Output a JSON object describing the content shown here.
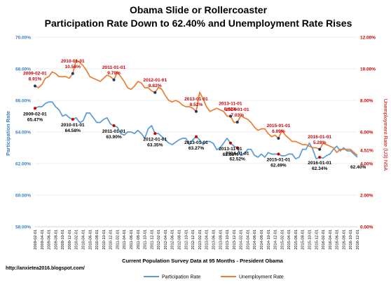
{
  "chart_data": {
    "type": "line",
    "title_line1": "Obama Slide or Rollercoaster",
    "title_line2": "Participation Rate Down to 62.40% and Unemployment Rate Rises",
    "xlabel": "Current Population Survey Data at 95 Months - President Obama",
    "ylabel_left": "Participation Rate",
    "ylabel_right": "Unemployment Rate (U3) NSA",
    "source": "http://anxietea2016.blogspot.com/",
    "x_start": "2009-02-01",
    "x_end": "2016-12-01",
    "left_axis": {
      "min": 58,
      "max": 70,
      "ticks": [
        "58.00%",
        "60.00%",
        "62.00%",
        "64.00%",
        "66.00%",
        "68.00%",
        "70.00%"
      ]
    },
    "right_axis": {
      "min": 0,
      "max": 12,
      "ticks": [
        "0.00%",
        "2.00%",
        "4.00%",
        "6.00%",
        "8.00%",
        "10.00%",
        "12.00%"
      ]
    },
    "legend_position": "bottom",
    "series": [
      {
        "name": "Participation Rate",
        "color": "#5b9bd5",
        "axis": "left",
        "values": [
          65.5,
          65.6,
          65.6,
          65.8,
          65.9,
          65.9,
          65.6,
          65.4,
          65.0,
          65.1,
          64.9,
          64.8,
          64.9,
          64.6,
          64.7,
          65.2,
          65.2,
          64.9,
          64.6,
          64.6,
          64.8,
          64.9,
          64.5,
          64.4,
          64.3,
          63.9,
          63.8,
          64.0,
          64.0,
          63.9,
          64.1,
          63.9,
          63.6,
          64.2,
          64.4,
          63.9,
          63.9,
          63.7,
          63.5,
          63.3,
          63.2,
          63.35,
          63.5,
          63.6,
          63.6,
          63.2,
          63.5,
          63.7,
          63.5,
          63.2,
          63.4,
          63.4,
          63.27,
          62.88,
          63.0,
          63.3,
          63.6,
          63.3,
          63.1,
          63.0,
          62.5,
          62.6,
          62.9,
          62.9,
          62.52,
          62.4,
          62.6,
          62.4,
          62.7,
          62.6,
          62.6,
          62.6,
          62.49,
          62.5,
          62.6,
          62.6,
          62.3,
          62.4,
          62.9,
          62.9,
          63.3,
          62.9,
          62.3,
          62.4,
          62.34,
          62.5,
          62.6,
          62.9,
          63.1,
          62.8,
          63.0,
          62.8,
          62.8,
          62.6,
          62.4
        ]
      },
      {
        "name": "Unemployment Rate",
        "color": "#ed7d31",
        "axis": "right",
        "values": [
          8.91,
          8.8,
          9.0,
          9.4,
          9.5,
          9.8,
          9.7,
          9.5,
          9.5,
          9.5,
          9.4,
          9.7,
          10.56,
          10.4,
          10.2,
          9.9,
          9.5,
          9.4,
          9.3,
          9.2,
          9.4,
          9.6,
          9.5,
          9.3,
          9.79,
          9.5,
          9.2,
          8.8,
          8.7,
          8.9,
          9.2,
          9.1,
          8.8,
          8.8,
          8.6,
          8.5,
          8.82,
          8.7,
          8.3,
          8.0,
          7.9,
          8.0,
          7.9,
          7.7,
          7.6,
          7.6,
          7.5,
          7.3,
          8.52,
          8.1,
          7.6,
          7.3,
          7.4,
          7.5,
          7.4,
          7.3,
          7.0,
          7.0,
          6.6,
          6.62,
          7.03,
          6.9,
          6.8,
          6.6,
          6.3,
          6.1,
          6.2,
          6.2,
          5.9,
          5.7,
          5.8,
          5.6,
          6.09,
          5.8,
          5.6,
          5.4,
          5.4,
          5.3,
          5.2,
          5.2,
          5.1,
          5.0,
          5.0,
          4.9,
          5.28,
          5.2,
          5.1,
          5.0,
          4.7,
          4.9,
          4.9,
          4.9,
          4.9,
          4.7,
          4.51
        ]
      }
    ],
    "annotations": [
      {
        "date": "2009-02-01",
        "label": "2009-02-01",
        "value": "8.91%",
        "series": "Unemployment Rate"
      },
      {
        "date": "2010-01-01",
        "label": "2010-01-01",
        "value": "10.56%",
        "series": "Unemployment Rate"
      },
      {
        "date": "2011-01-01",
        "label": "2011-01-01",
        "value": "9.79%",
        "series": "Unemployment Rate"
      },
      {
        "date": "2012-01-01",
        "label": "2012-01-01",
        "value": "8.82%",
        "series": "Unemployment Rate"
      },
      {
        "date": "2013-01-01",
        "label": "2013-01-01",
        "value": "8.52%",
        "series": "Unemployment Rate"
      },
      {
        "date": "2013-11-01",
        "label": "2013-11-01",
        "value": "6.62%",
        "series": "Unemployment Rate"
      },
      {
        "date": "2014-01-01",
        "label": "2014-01-01",
        "value": "7.03%",
        "series": "Unemployment Rate"
      },
      {
        "date": "2015-01-01",
        "label": "2015-01-01",
        "value": "6.09%",
        "series": "Unemployment Rate"
      },
      {
        "date": "2016-01-01",
        "label": "2016-01-01",
        "value": "5.28%",
        "series": "Unemployment Rate"
      },
      {
        "date": "2016-12-01",
        "label": "",
        "value": "4.51%",
        "series": "Unemployment Rate"
      },
      {
        "date": "2009-02-01",
        "label": "2009-02-01",
        "value": "65.47%",
        "series": "Participation Rate"
      },
      {
        "date": "2010-01-01",
        "label": "2010-01-01",
        "value": "64.58%",
        "series": "Participation Rate"
      },
      {
        "date": "2011-01-01",
        "label": "2011-01-01",
        "value": "63.90%",
        "series": "Participation Rate"
      },
      {
        "date": "2012-01-01",
        "label": "2012-01-01",
        "value": "63.35%",
        "series": "Participation Rate"
      },
      {
        "date": "2013-01-01",
        "label": "2013-01-01",
        "value": "63.27%",
        "series": "Participation Rate"
      },
      {
        "date": "2013-11-01",
        "label": "2013-11-01",
        "value": "62.88%",
        "series": "Participation Rate"
      },
      {
        "date": "2014-01-01",
        "label": "2014-01-01",
        "value": "62.52%",
        "series": "Participation Rate"
      },
      {
        "date": "2015-01-01",
        "label": "2015-01-01",
        "value": "62.49%",
        "series": "Participation Rate"
      },
      {
        "date": "2016-01-01",
        "label": "2016-01-01",
        "value": "62.34%",
        "series": "Participation Rate"
      },
      {
        "date": "2016-12-01",
        "label": "",
        "value": "62.40%",
        "series": "Participation Rate"
      }
    ]
  }
}
